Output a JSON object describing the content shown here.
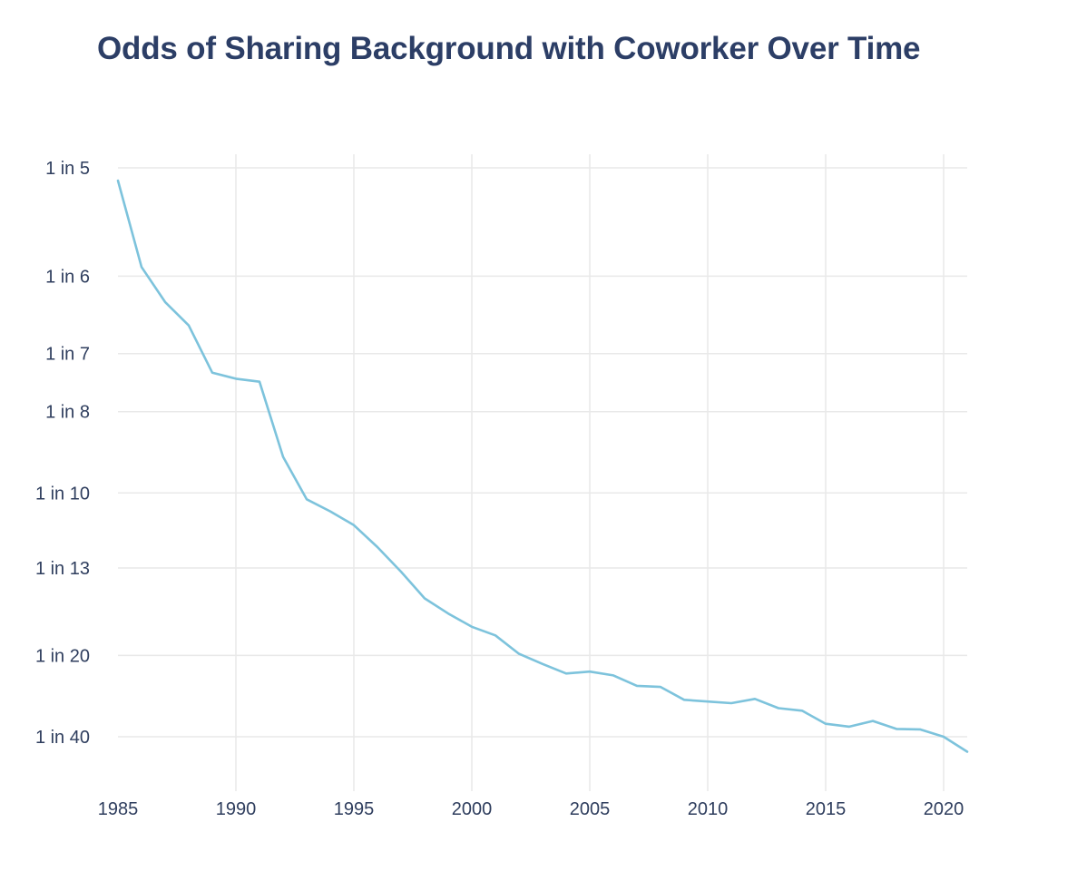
{
  "chart_data": {
    "type": "line",
    "title": "Odds of Sharing Background with Coworker Over Time",
    "xlabel": "",
    "ylabel": "",
    "xlim": [
      1985,
      2021
    ],
    "x_ticks": [
      1985,
      1990,
      1995,
      2000,
      2005,
      2010,
      2015,
      2020
    ],
    "y_scale": "reciprocal",
    "y_ticks": [
      5,
      6,
      7,
      8,
      10,
      13,
      20,
      40
    ],
    "y_tick_labels": [
      "1 in 5",
      "1 in 6",
      "1 in 7",
      "1 in 8",
      "1 in 10",
      "1 in 13",
      "1 in 20",
      "1 in 40"
    ],
    "grid": true,
    "legend": "none",
    "line_color": "#7dc3dc",
    "series": [
      {
        "x": [
          1985,
          1986,
          1987,
          1988,
          1989,
          1990,
          1991,
          1992,
          1993,
          1994,
          1995,
          1996,
          1997,
          1998,
          1999,
          2000,
          2001,
          2002,
          2003,
          2004,
          2005,
          2006,
          2007,
          2008,
          2009,
          2010,
          2011,
          2012,
          2013,
          2014,
          2015,
          2016,
          2017,
          2018,
          2019,
          2020,
          2021
        ],
        "values": [
          5.1,
          5.9,
          6.3,
          6.6,
          7.3,
          7.4,
          7.45,
          9.0,
          10.2,
          10.6,
          11.1,
          12.0,
          13.2,
          14.8,
          15.9,
          17.0,
          17.8,
          19.8,
          21.1,
          22.5,
          22.2,
          22.8,
          24.6,
          24.8,
          27.5,
          27.9,
          28.3,
          27.3,
          29.6,
          30.3,
          34.5,
          35.6,
          33.5,
          36.5,
          36.7,
          40.0,
          49.0
        ]
      }
    ]
  }
}
